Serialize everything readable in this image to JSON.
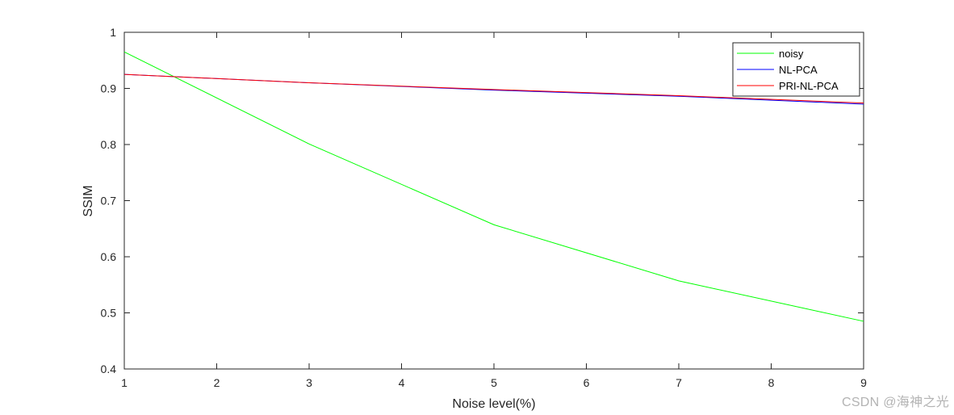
{
  "chart_data": {
    "type": "line",
    "title": "",
    "xlabel": "Noise level(%)",
    "ylabel": "SSIM",
    "xlim": [
      1,
      9
    ],
    "ylim": [
      0.4,
      1
    ],
    "xticks": [
      1,
      2,
      3,
      4,
      5,
      6,
      7,
      8,
      9
    ],
    "yticks": [
      0.4,
      0.5,
      0.6,
      0.7,
      0.8,
      0.9,
      1
    ],
    "ytick_labels": [
      "0.4",
      "0.5",
      "0.6",
      "0.7",
      "0.8",
      "0.9",
      "1"
    ],
    "grid": false,
    "legend_position": "top-right",
    "series": [
      {
        "name": "noisy",
        "color": "#00ff00",
        "x": [
          1,
          3,
          5,
          7,
          9
        ],
        "y": [
          0.965,
          0.801,
          0.657,
          0.557,
          0.485
        ]
      },
      {
        "name": "NL-PCA",
        "color": "#0000ff",
        "x": [
          1,
          3,
          5,
          7,
          9
        ],
        "y": [
          0.925,
          0.91,
          0.897,
          0.886,
          0.872
        ]
      },
      {
        "name": "PRI-NL-PCA",
        "color": "#ff0000",
        "x": [
          1,
          3,
          5,
          7,
          9
        ],
        "y": [
          0.925,
          0.91,
          0.898,
          0.887,
          0.874
        ]
      }
    ]
  },
  "watermark": "CSDN @海神之光"
}
